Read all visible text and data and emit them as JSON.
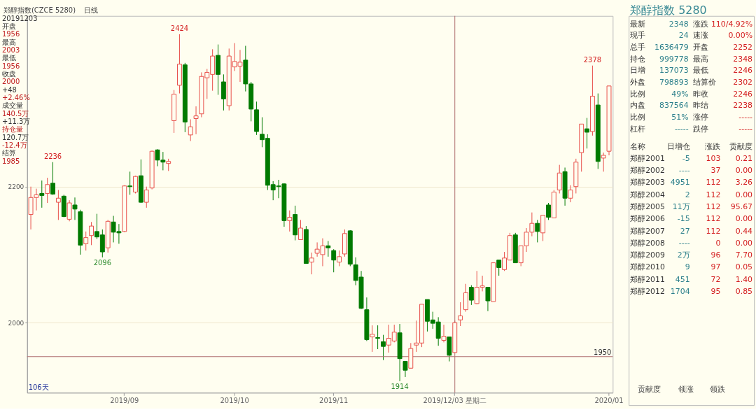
{
  "chart_data": [
    {
      "type": "candlestick",
      "title": "郑醇指数(CZCE 5280)",
      "subtitle": "日线",
      "categories": [
        null,
        null,
        null,
        null,
        null,
        null,
        null,
        null,
        null,
        null,
        null,
        null,
        null,
        null,
        null,
        null,
        null,
        "2019/09",
        null,
        null,
        null,
        null,
        null,
        null,
        null,
        null,
        null,
        null,
        null,
        null,
        null,
        null,
        null,
        null,
        null,
        null,
        null,
        "2019/10",
        null,
        null,
        null,
        null,
        null,
        null,
        null,
        null,
        null,
        null,
        null,
        null,
        null,
        null,
        null,
        null,
        null,
        "2019/11",
        null,
        null,
        null,
        null,
        null,
        null,
        null,
        null,
        null,
        null,
        null,
        null,
        null,
        null,
        null,
        null,
        null,
        null,
        null,
        null,
        null,
        "2019/12/03 星期二",
        null,
        null,
        null,
        null,
        null,
        null,
        null,
        null,
        null,
        null,
        null,
        null,
        null,
        null,
        null,
        null,
        null,
        null,
        null,
        null,
        null,
        null,
        null,
        null,
        null,
        null,
        null,
        "2020/01"
      ],
      "ohlc": [
        [
          2159,
          2200,
          2137,
          2184
        ],
        [
          2184,
          2197,
          2165,
          2188
        ],
        [
          2190,
          2209,
          2169,
          2187
        ],
        [
          2190,
          2213,
          2176,
          2203
        ],
        [
          2205,
          2236,
          2188,
          2189
        ],
        [
          2177,
          2195,
          2151,
          2183
        ],
        [
          2186,
          2188,
          2155,
          2156
        ],
        [
          2152,
          2180,
          2149,
          2176
        ],
        [
          2173,
          2184,
          2151,
          2167
        ],
        [
          2163,
          2166,
          2100,
          2114
        ],
        [
          2116,
          2134,
          2106,
          2125
        ],
        [
          2128,
          2148,
          2114,
          2142
        ],
        [
          2134,
          2160,
          2123,
          2126
        ],
        [
          2129,
          2137,
          2096,
          2104
        ],
        [
          2110,
          2151,
          2103,
          2149
        ],
        [
          2148,
          2157,
          2118,
          2133
        ],
        [
          2134,
          2145,
          2116,
          2132
        ],
        [
          2134,
          2202,
          2133,
          2201
        ],
        [
          2201,
          2222,
          2188,
          2200
        ],
        [
          2192,
          2216,
          2190,
          2215
        ],
        [
          2216,
          2240,
          2176,
          2177
        ],
        [
          2177,
          2200,
          2169,
          2195
        ],
        [
          2198,
          2253,
          2196,
          2252
        ],
        [
          2254,
          2255,
          2230,
          2239
        ],
        [
          2239,
          2251,
          2224,
          2236
        ],
        [
          2234,
          2241,
          2223,
          2237
        ],
        [
          2297,
          2342,
          2279,
          2336
        ],
        [
          2349,
          2424,
          2337,
          2380
        ],
        [
          2379,
          2382,
          2280,
          2295
        ],
        [
          2276,
          2299,
          2267,
          2288
        ],
        [
          2300,
          2318,
          2277,
          2304
        ],
        [
          2307,
          2368,
          2302,
          2362
        ],
        [
          2360,
          2373,
          2329,
          2368
        ],
        [
          2365,
          2402,
          2341,
          2392
        ],
        [
          2393,
          2409,
          2335,
          2365
        ],
        [
          2354,
          2365,
          2312,
          2329
        ],
        [
          2319,
          2403,
          2312,
          2392
        ],
        [
          2376,
          2411,
          2370,
          2384
        ],
        [
          2377,
          2401,
          2354,
          2383
        ],
        [
          2386,
          2407,
          2340,
          2351
        ],
        [
          2351,
          2354,
          2296,
          2314
        ],
        [
          2313,
          2325,
          2276,
          2281
        ],
        [
          2277,
          2302,
          2258,
          2269
        ],
        [
          2271,
          2277,
          2195,
          2202
        ],
        [
          2203,
          2208,
          2180,
          2195
        ],
        [
          2201,
          2210,
          2183,
          2200
        ],
        [
          2204,
          2205,
          2141,
          2150
        ],
        [
          2150,
          2165,
          2134,
          2155
        ],
        [
          2159,
          2172,
          2121,
          2129
        ],
        [
          2122,
          2151,
          2122,
          2139
        ],
        [
          2137,
          2142,
          2087,
          2087
        ],
        [
          2089,
          2103,
          2071,
          2095
        ],
        [
          2102,
          2118,
          2097,
          2108
        ],
        [
          2100,
          2124,
          2083,
          2113
        ],
        [
          2113,
          2120,
          2097,
          2110
        ],
        [
          2106,
          2108,
          2074,
          2092
        ],
        [
          2089,
          2106,
          2083,
          2097
        ],
        [
          2101,
          2137,
          2097,
          2131
        ],
        [
          2135,
          2136,
          2083,
          2086
        ],
        [
          2085,
          2096,
          2055,
          2062
        ],
        [
          2067,
          2076,
          2020,
          2021
        ],
        [
          2019,
          2037,
          1973,
          1975
        ],
        [
          1979,
          1996,
          1957,
          1983
        ],
        [
          1978,
          1996,
          1961,
          1977
        ],
        [
          1972,
          1982,
          1945,
          1965
        ],
        [
          1967,
          1997,
          1956,
          1977
        ],
        [
          1973,
          1997,
          1971,
          1986
        ],
        [
          1985,
          1998,
          1914,
          1947
        ],
        [
          1943,
          1943,
          1920,
          1930
        ],
        [
          1933,
          1970,
          1933,
          1962
        ],
        [
          1967,
          2003,
          1957,
          1970
        ],
        [
          1970,
          2027,
          1964,
          2027
        ],
        [
          2034,
          2034,
          1987,
          2002
        ],
        [
          2004,
          2016,
          1991,
          1999
        ],
        [
          2001,
          2008,
          1966,
          1977
        ],
        [
          1974,
          1997,
          1971,
          1980
        ],
        [
          1979,
          1979,
          1943,
          1952
        ],
        [
          1956,
          2003,
          1956,
          2000
        ],
        [
          2004,
          2030,
          1995,
          2010
        ],
        [
          2019,
          2057,
          2016,
          2044
        ],
        [
          2052,
          2055,
          2026,
          2033
        ],
        [
          2028,
          2076,
          2027,
          2052
        ],
        [
          2052,
          2069,
          2046,
          2054
        ],
        [
          2052,
          2052,
          2017,
          2032
        ],
        [
          2031,
          2088,
          2031,
          2088
        ],
        [
          2092,
          2092,
          2069,
          2081
        ],
        [
          2078,
          2104,
          2076,
          2095
        ],
        [
          2092,
          2132,
          2092,
          2128
        ],
        [
          2129,
          2132,
          2088,
          2088
        ],
        [
          2088,
          2113,
          2083,
          2113
        ],
        [
          2113,
          2139,
          2104,
          2133
        ],
        [
          2133,
          2162,
          2127,
          2146
        ],
        [
          2146,
          2151,
          2118,
          2134
        ],
        [
          2132,
          2158,
          2120,
          2158
        ],
        [
          2173,
          2176,
          2151,
          2155
        ],
        [
          2154,
          2195,
          2154,
          2192
        ],
        [
          2195,
          2232,
          2190,
          2220
        ],
        [
          2222,
          2228,
          2172,
          2183
        ],
        [
          2183,
          2202,
          2177,
          2195
        ],
        [
          2200,
          2241,
          2190,
          2236
        ],
        [
          2250,
          2292,
          2222,
          2292
        ],
        [
          2285,
          2301,
          2256,
          2280
        ],
        [
          2281,
          2378,
          2275,
          2333
        ],
        [
          2320,
          2337,
          2226,
          2237
        ],
        [
          2242,
          2250,
          2222,
          2246
        ],
        [
          2252,
          2348,
          2246,
          2348
        ]
      ],
      "ylim": [
        1897,
        2451
      ],
      "yticks": [
        2000,
        2200
      ],
      "grid": "y",
      "ref_lines": [
        {
          "axis": "y",
          "value": 1950,
          "label": "1950",
          "color": "#b07070"
        },
        {
          "axis": "x",
          "value": "2019/12/03 星期二",
          "color": "#b07070"
        }
      ],
      "annotations": [
        {
          "text": "2236",
          "y": 2236
        },
        {
          "text": "2424",
          "y": 2424
        },
        {
          "text": "2096",
          "y": 2096
        },
        {
          "text": "1914",
          "y": 1914
        },
        {
          "text": "2378",
          "y": 2378
        },
        "20191203",
        "开盘",
        "1956",
        "最高",
        "2003",
        "最低",
        "1956",
        "收盘",
        "2000",
        "+48",
        "+2.46%",
        "成交量",
        "140.5万",
        "+11.3万",
        "持仓量",
        "120.7万",
        "-12.4万",
        "结算",
        "1985",
        "106天"
      ]
    },
    {
      "type": "other",
      "title": "郑醇指数 5280",
      "annotations": [
        "最新",
        "2348",
        "涨跌",
        "110/4.92%",
        "现手",
        "24",
        "速涨",
        "0.00%",
        "总手",
        "1636479",
        "开盘",
        "2252",
        "持仓",
        "999778",
        "最高",
        "2348",
        "日增",
        "137073",
        "最低",
        "2246",
        "外盘",
        "798893",
        "结算价",
        "2302",
        "比例",
        "49%",
        "昨收",
        "2246",
        "内盘",
        "837564",
        "昨结",
        "2238",
        "比例",
        "51%",
        "涨停",
        "-----",
        "杠杆",
        "-----",
        "跌停",
        "-----",
        "名称",
        "日增仓",
        "涨跌",
        "贡献度",
        "郑醇2001",
        "-5",
        "103",
        "0.21",
        "郑醇2002",
        "----",
        "37",
        "0.00",
        "郑醇2003",
        "4951",
        "112",
        "3.26",
        "郑醇2004",
        "2",
        "112",
        "0.00",
        "郑醇2005",
        "11万",
        "112",
        "95.67",
        "郑醇2006",
        "-15",
        "112",
        "0.00",
        "郑醇2007",
        "27",
        "112",
        "0.44",
        "郑醇2008",
        "----",
        "0",
        "0.00",
        "郑醇2009",
        "2万",
        "96",
        "7.70",
        "郑醇2010",
        "9",
        "97",
        "0.05",
        "郑醇2011",
        "451",
        "72",
        "1.40",
        "郑醇2012",
        "1704",
        "95",
        "0.85",
        "贡献度",
        "领涨",
        "领跌"
      ]
    }
  ]
}
